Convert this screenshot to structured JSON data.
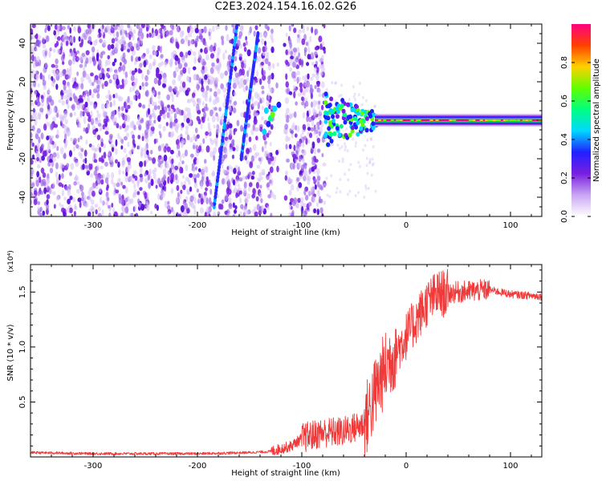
{
  "page_title": "C2E3.2024.154.16.02.G26",
  "chart_data": [
    {
      "type": "heatmap",
      "xlabel": "Height of straight line (km)",
      "ylabel": "Frequency (Hz)",
      "xlim": [
        -360,
        130
      ],
      "ylim": [
        -50,
        50
      ],
      "xticks": [
        -300,
        -200,
        -100,
        0,
        100
      ],
      "yticks": [
        -40,
        -20,
        0,
        20,
        40
      ],
      "colorbar": {
        "label": "Normalized spectral amplitude",
        "range": [
          0,
          1
        ],
        "ticks": [
          "0.0",
          "0.2",
          "0.4",
          "0.6",
          "0.8"
        ],
        "colors": [
          "#ffffff",
          "#c9a6f2",
          "#7a1fe0",
          "#2020ff",
          "#00d8ff",
          "#00ff80",
          "#60ff00",
          "#ffd000",
          "#ff4000",
          "#ff0080"
        ]
      },
      "features": {
        "noise_region_km": [
          -360,
          -78
        ],
        "streak_1": {
          "x_from": -184,
          "x_to": -162,
          "y_from": -45,
          "y_to": 50
        },
        "streak_2": {
          "x_from": -158,
          "x_to": -142,
          "y_from": -20,
          "y_to": 45
        },
        "gap_km": [
          -128,
          -115
        ],
        "signal_onset_km": -78,
        "carrier_line": {
          "x_from": -30,
          "x_to": 130,
          "frequency_hz": 0,
          "amplitude": 0.95
        }
      }
    },
    {
      "type": "line",
      "xlabel": "Height of straight line (km)",
      "ylabel": "SNR (10 * v/v)",
      "ylabel_multiplier": "(x10⁴)",
      "xlim": [
        -360,
        130
      ],
      "ylim": [
        0,
        1.75
      ],
      "xticks": [
        -300,
        -200,
        -100,
        0,
        100
      ],
      "yticks": [
        "0.5",
        "1.0",
        "1.5"
      ],
      "line_color": "#f03a3a",
      "series": [
        {
          "x": [
            -360,
            -300,
            -250,
            -200,
            -150,
            -130,
            -110,
            -100,
            -80,
            -60,
            -40,
            -25,
            -15,
            -10,
            0,
            10,
            20,
            30,
            50,
            80,
            100,
            130
          ],
          "y": [
            0.04,
            0.03,
            0.03,
            0.03,
            0.04,
            0.05,
            0.1,
            0.17,
            0.22,
            0.23,
            0.3,
            0.7,
            0.9,
            0.95,
            1.1,
            1.25,
            1.4,
            1.48,
            1.5,
            1.52,
            1.48,
            1.46
          ]
        }
      ]
    }
  ]
}
